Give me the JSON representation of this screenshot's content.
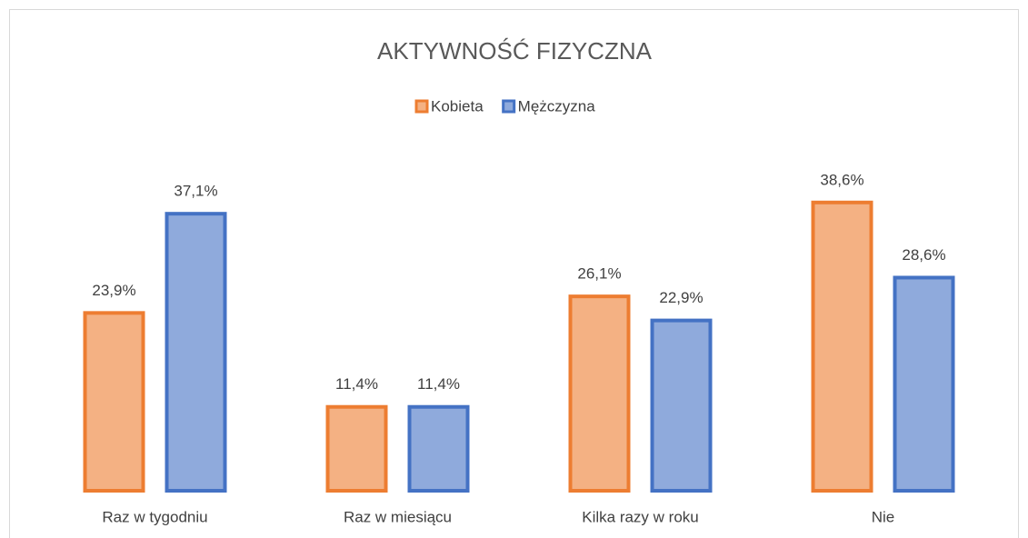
{
  "chart_data": {
    "type": "bar",
    "title": "AKTYWNOŚĆ FIZYCZNA",
    "categories": [
      "Raz w tygodniu",
      "Raz w miesiącu",
      "Kilka razy w roku",
      "Nie"
    ],
    "series": [
      {
        "name": "Kobieta",
        "color": "#ed7d31",
        "fill": "#f4b183",
        "values": [
          23.9,
          11.4,
          26.1,
          38.6
        ],
        "value_labels": [
          "23,9%",
          "11,4%",
          "26,1%",
          "38,6%"
        ]
      },
      {
        "name": "Mężczyzna",
        "color": "#4472c4",
        "fill": "#8faadc",
        "values": [
          37.1,
          11.4,
          22.9,
          28.6
        ],
        "value_labels": [
          "37,1%",
          "11,4%",
          "22,9%",
          "28,6%"
        ]
      }
    ],
    "legend": "top"
  }
}
